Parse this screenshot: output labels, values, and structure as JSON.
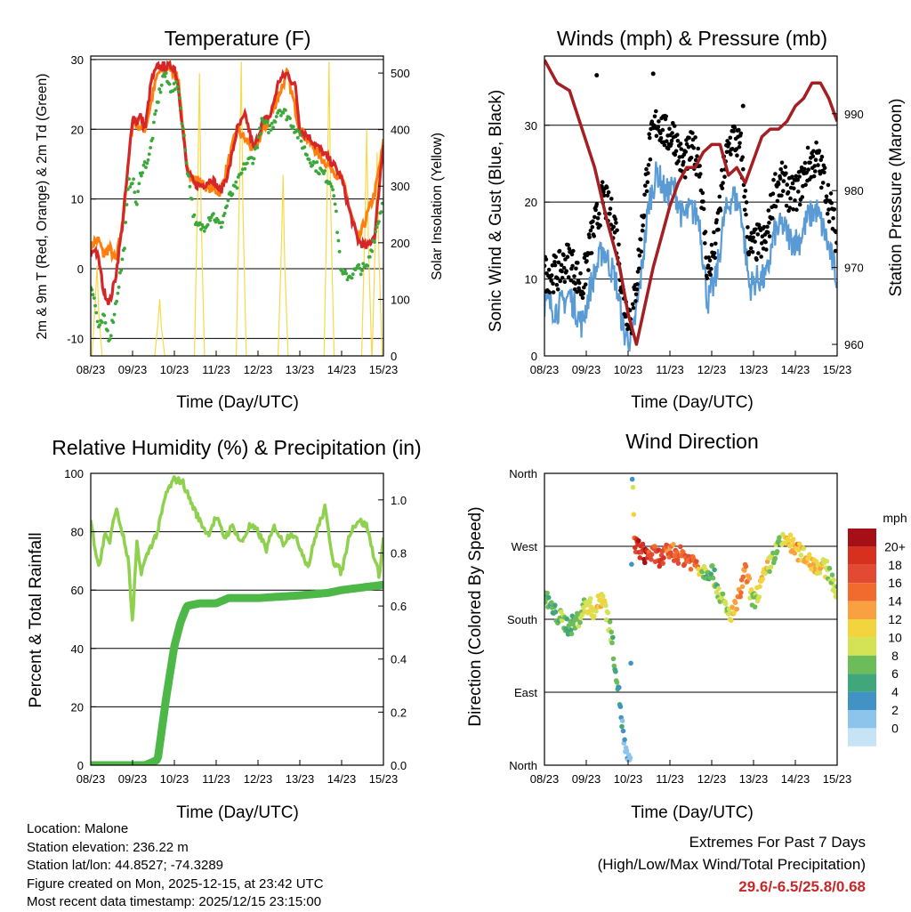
{
  "colors": {
    "red": "#d62728",
    "orange": "#ff7f0e",
    "green_td": "#3aa83a",
    "yellow": "#f7d94c",
    "blue": "#5b9bd5",
    "black": "#000000",
    "maroon": "#a51e22",
    "rh": "#8fd14f",
    "precip": "#4db847",
    "extremes": "#c62828"
  },
  "x_ticks": [
    "08/23",
    "09/23",
    "10/23",
    "11/23",
    "12/23",
    "13/23",
    "14/23",
    "15/23"
  ],
  "chart_data": [
    {
      "type": "line",
      "title": "Temperature (F)",
      "xlabel": "Time (Day/UTC)",
      "ylabel_left": "2m & 9m T (Red, Orange) & 2m Td (Green)",
      "ylabel_right": "Solar Insolation (Yellow)",
      "ylim": [
        -12.5,
        30.5
      ],
      "y2lim": [
        0,
        530
      ],
      "yticks": [
        -10,
        0,
        10,
        20,
        30
      ],
      "y2ticks": [
        0,
        100,
        200,
        300,
        400,
        500
      ],
      "x_unit": "days since 08/23",
      "series": [
        {
          "name": "2m T",
          "color": "red",
          "x": [
            0,
            0.1,
            0.2,
            0.3,
            0.45,
            0.6,
            0.75,
            0.9,
            1.0,
            1.1,
            1.2,
            1.3,
            1.45,
            1.6,
            1.75,
            1.9,
            2.0,
            2.1,
            2.2,
            2.3,
            2.5,
            2.7,
            2.9,
            3.1,
            3.3,
            3.5,
            3.7,
            3.9,
            4.1,
            4.3,
            4.5,
            4.7,
            4.9,
            5.0,
            5.2,
            5.5,
            5.8,
            6.0,
            6.2,
            6.4,
            6.6,
            6.8,
            6.9,
            7.0
          ],
          "values": [
            2,
            3,
            1,
            -3,
            -5,
            -1,
            6,
            15,
            22,
            21,
            22,
            20,
            27,
            29,
            29,
            29,
            29,
            26,
            20,
            14,
            12,
            12,
            13,
            11,
            14,
            20,
            22,
            17,
            21,
            22,
            27,
            28,
            26,
            20,
            19,
            17,
            15,
            13,
            8,
            4,
            3,
            5,
            12,
            18
          ]
        },
        {
          "name": "9m T",
          "color": "orange",
          "x": [
            0,
            0.1,
            0.2,
            0.3,
            0.45,
            0.6,
            0.75,
            0.9,
            1.0,
            1.3,
            1.6,
            1.9,
            2.1,
            2.3,
            2.7,
            3.1,
            3.5,
            3.9,
            4.3,
            4.7,
            5.0,
            5.5,
            6.0,
            6.4,
            6.8,
            7.0
          ],
          "values": [
            3,
            4,
            4,
            2,
            3,
            1,
            6,
            15,
            21,
            20,
            28,
            29,
            27,
            14,
            12,
            11,
            20,
            17,
            22,
            28,
            20,
            16,
            13,
            4,
            11,
            18
          ]
        },
        {
          "name": "2m Td",
          "color": "green_td",
          "x": [
            0,
            0.1,
            0.2,
            0.3,
            0.45,
            0.6,
            0.8,
            0.9,
            1.0,
            1.1,
            1.2,
            1.4,
            1.6,
            1.75,
            1.9,
            2.1,
            2.3,
            2.5,
            2.7,
            2.9,
            3.1,
            3.3,
            3.5,
            3.7,
            3.9,
            4.1,
            4.3,
            4.5,
            4.7,
            4.9,
            5.2,
            5.5,
            5.8,
            6.0,
            6.2,
            6.4,
            6.6,
            6.8,
            7.0
          ],
          "values": [
            -2,
            -5,
            -9,
            -7,
            -10,
            -5,
            3,
            12,
            13,
            9,
            14,
            16,
            24,
            28,
            26,
            26,
            15,
            6,
            6,
            8,
            6,
            10,
            12,
            15,
            16,
            21,
            20,
            23,
            22,
            20,
            16,
            14,
            12,
            -1,
            -1,
            0,
            0,
            5,
            10
          ]
        },
        {
          "name": "Solar Insolation",
          "color": "yellow",
          "axis": "right",
          "peaks_x": [
            0.15,
            1.65,
            2.6,
            3.6,
            4.6,
            5.7,
            6.6,
            6.85
          ],
          "peaks_values": [
            160,
            100,
            500,
            520,
            320,
            520,
            400,
            360
          ]
        }
      ]
    },
    {
      "type": "line",
      "title": "Winds (mph) & Pressure (mb)",
      "xlabel": "Time (Day/UTC)",
      "ylabel_left": "Sonic Wind & Gust (Blue, Black)",
      "ylabel_right": "Station Pressure (Maroon)",
      "ylim": [
        0,
        39
      ],
      "y2lim": [
        958.5,
        997.5
      ],
      "yticks": [
        0,
        10,
        20,
        30
      ],
      "y2ticks": [
        960,
        970,
        980,
        990
      ],
      "series": [
        {
          "name": "Sonic Wind",
          "color": "blue",
          "x": [
            0,
            0.3,
            0.6,
            0.9,
            1.1,
            1.4,
            1.7,
            1.9,
            2.1,
            2.3,
            2.5,
            2.7,
            2.9,
            3.1,
            3.3,
            3.5,
            3.7,
            3.9,
            4.1,
            4.3,
            4.5,
            4.7,
            4.9,
            5.1,
            5.3,
            5.5,
            5.7,
            5.9,
            6.1,
            6.3,
            6.5,
            6.7,
            6.9,
            7.0
          ],
          "values": [
            7,
            6,
            8,
            4,
            9,
            14,
            10,
            3,
            2,
            10,
            20,
            24,
            21,
            22,
            18,
            19,
            18,
            7,
            10,
            18,
            21,
            19,
            9,
            10,
            10,
            16,
            17,
            15,
            15,
            18,
            19,
            16,
            12,
            10
          ]
        },
        {
          "name": "Gust",
          "color": "black",
          "x": [
            0,
            0.3,
            0.6,
            0.9,
            1.1,
            1.4,
            1.7,
            1.9,
            2.1,
            2.3,
            2.5,
            2.7,
            2.9,
            3.1,
            3.3,
            3.5,
            3.7,
            3.9,
            4.1,
            4.3,
            4.5,
            4.7,
            4.9,
            5.1,
            5.3,
            5.5,
            5.7,
            5.9,
            6.1,
            6.3,
            6.5,
            6.7,
            6.9,
            7.0
          ],
          "values": [
            10,
            10,
            12,
            8,
            14,
            20,
            16,
            6,
            4,
            14,
            26,
            30,
            28,
            28,
            24,
            26,
            25,
            10,
            14,
            24,
            28,
            26,
            13,
            14,
            14,
            21,
            22,
            20,
            21,
            24,
            25,
            22,
            17,
            14
          ]
        },
        {
          "name": "Station Pressure",
          "color": "maroon",
          "axis": "right",
          "x": [
            0,
            0.3,
            0.6,
            0.9,
            1.2,
            1.5,
            1.8,
            2.0,
            2.2,
            2.4,
            2.6,
            2.8,
            3.0,
            3.2,
            3.4,
            3.6,
            3.8,
            4.0,
            4.2,
            4.4,
            4.6,
            4.8,
            5.0,
            5.2,
            5.4,
            5.6,
            5.8,
            6.0,
            6.2,
            6.4,
            6.6,
            6.8,
            7.0
          ],
          "values": [
            997,
            994,
            993,
            988,
            983,
            976,
            970,
            964,
            960,
            965,
            970,
            974,
            978,
            981,
            983,
            983,
            985,
            986,
            986,
            982,
            983,
            981,
            984,
            987,
            988,
            988,
            989,
            991,
            992,
            994,
            994,
            992,
            989
          ]
        }
      ],
      "gust_outliers_x": [
        1.25,
        2.6,
        4.75
      ],
      "gust_outliers_values": [
        36.5,
        36.7,
        32.5
      ]
    },
    {
      "type": "line",
      "title": "Relative Humidity (%) & Precipitation (in)",
      "xlabel": "Time (Day/UTC)",
      "ylabel_left": "Percent & Total Rainfall",
      "ylim": [
        0,
        100
      ],
      "y2lim": [
        0,
        1.1
      ],
      "yticks": [
        0,
        20,
        40,
        60,
        80,
        100
      ],
      "y2ticks": [
        "0.0",
        "0.2",
        "0.4",
        "0.6",
        "0.8",
        "1.0"
      ],
      "series": [
        {
          "name": "Relative Humidity",
          "color": "rh",
          "x": [
            0,
            0.1,
            0.2,
            0.35,
            0.45,
            0.6,
            0.75,
            0.9,
            1.0,
            1.1,
            1.2,
            1.4,
            1.6,
            1.8,
            2.0,
            2.2,
            2.4,
            2.6,
            2.8,
            3.0,
            3.2,
            3.4,
            3.6,
            3.8,
            4.0,
            4.2,
            4.4,
            4.6,
            4.8,
            5.0,
            5.2,
            5.4,
            5.6,
            5.8,
            6.0,
            6.2,
            6.4,
            6.6,
            6.8,
            6.9,
            7.0
          ],
          "values": [
            84,
            75,
            68,
            80,
            76,
            88,
            80,
            70,
            48,
            76,
            66,
            74,
            80,
            93,
            98,
            97,
            90,
            84,
            79,
            85,
            78,
            82,
            76,
            82,
            80,
            74,
            82,
            76,
            80,
            75,
            68,
            80,
            88,
            70,
            66,
            80,
            84,
            82,
            70,
            65,
            78
          ]
        },
        {
          "name": "Total Precipitation",
          "color": "precip",
          "axis": "right",
          "x": [
            0,
            1.3,
            1.6,
            1.8,
            2.0,
            2.15,
            2.3,
            2.6,
            3.0,
            3.3,
            4.0,
            5.0,
            5.7,
            6.0,
            6.5,
            7.0
          ],
          "values": [
            0,
            0,
            0.02,
            0.25,
            0.45,
            0.54,
            0.6,
            0.61,
            0.61,
            0.63,
            0.63,
            0.64,
            0.65,
            0.66,
            0.67,
            0.68
          ]
        }
      ]
    },
    {
      "type": "scatter",
      "title": "Wind Direction",
      "xlabel": "Time (Day/UTC)",
      "ylabel_left": "Direction (Colored By Speed)",
      "ylim": [
        0,
        360
      ],
      "yticks": [
        "North",
        "East",
        "South",
        "West",
        "North"
      ],
      "colorbar_title": "mph",
      "colorbar_labels": [
        "20+",
        "18",
        "16",
        "14",
        "12",
        "10",
        "8",
        "6",
        "4",
        "2",
        "0"
      ],
      "colorbar_colors": [
        "#a50f15",
        "#d7301f",
        "#e34a33",
        "#f16b2f",
        "#f9a040",
        "#f2d43f",
        "#d4e256",
        "#6cbd5a",
        "#41a77a",
        "#4292c6",
        "#8cc4eb",
        "#c6e4f6"
      ],
      "x": [
        0,
        0.2,
        0.4,
        0.6,
        0.8,
        1.0,
        1.2,
        1.4,
        1.6,
        1.8,
        1.9,
        2.0,
        2.05,
        2.1,
        2.15,
        2.2,
        2.4,
        2.6,
        2.8,
        3.0,
        3.2,
        3.4,
        3.6,
        3.8,
        4.0,
        4.2,
        4.4,
        4.6,
        4.8,
        5.0,
        5.2,
        5.4,
        5.6,
        5.8,
        6.0,
        6.2,
        6.4,
        6.6,
        6.8,
        7.0
      ],
      "values": [
        210,
        190,
        180,
        170,
        180,
        200,
        190,
        210,
        160,
        80,
        30,
        0,
        10,
        360,
        280,
        270,
        260,
        260,
        255,
        265,
        260,
        255,
        250,
        240,
        240,
        210,
        185,
        195,
        240,
        200,
        225,
        250,
        270,
        280,
        265,
        260,
        250,
        245,
        240,
        210
      ],
      "speeds": [
        6,
        7,
        8,
        7,
        9,
        10,
        11,
        12,
        8,
        5,
        3,
        2,
        2,
        3,
        18,
        19,
        20,
        17,
        18,
        16,
        18,
        17,
        17,
        8,
        7,
        9,
        10,
        14,
        16,
        8,
        14,
        10,
        8,
        12,
        14,
        12,
        13,
        12,
        10,
        8
      ]
    }
  ],
  "info": {
    "location": "Location: Malone",
    "elevation": "Station elevation: 236.22 m",
    "latlon": "Station lat/lon: 44.8527; -74.3289",
    "created": "Figure created on Mon, 2025-12-15, at 23:42 UTC",
    "latest": "Most recent data timestamp: 2025/12/15 23:15:00"
  },
  "extremes": {
    "heading": "Extremes For Past 7 Days",
    "subheading": "(High/Low/Max Wind/Total Precipitation)",
    "values": "29.6/-6.5/25.8/0.68"
  }
}
